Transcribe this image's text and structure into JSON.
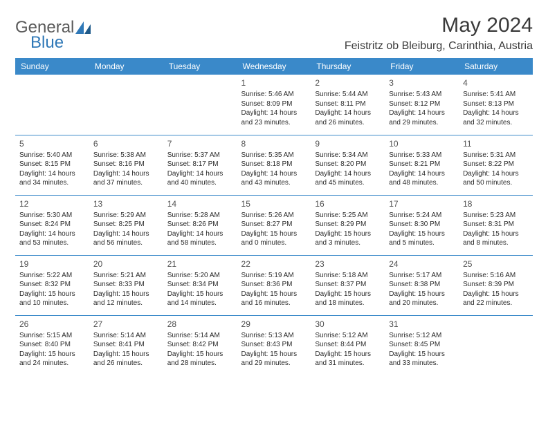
{
  "logo": {
    "word1": "General",
    "word2": "Blue"
  },
  "title": "May 2024",
  "location": "Feistritz ob Bleiburg, Carinthia, Austria",
  "header_bg": "#3a89c9",
  "divider_color": "#3a89c9",
  "dayHeaders": [
    "Sunday",
    "Monday",
    "Tuesday",
    "Wednesday",
    "Thursday",
    "Friday",
    "Saturday"
  ],
  "weeks": [
    [
      null,
      null,
      null,
      {
        "n": "1",
        "sr": "5:46 AM",
        "ss": "8:09 PM",
        "dl": "14 hours and 23 minutes."
      },
      {
        "n": "2",
        "sr": "5:44 AM",
        "ss": "8:11 PM",
        "dl": "14 hours and 26 minutes."
      },
      {
        "n": "3",
        "sr": "5:43 AM",
        "ss": "8:12 PM",
        "dl": "14 hours and 29 minutes."
      },
      {
        "n": "4",
        "sr": "5:41 AM",
        "ss": "8:13 PM",
        "dl": "14 hours and 32 minutes."
      }
    ],
    [
      {
        "n": "5",
        "sr": "5:40 AM",
        "ss": "8:15 PM",
        "dl": "14 hours and 34 minutes."
      },
      {
        "n": "6",
        "sr": "5:38 AM",
        "ss": "8:16 PM",
        "dl": "14 hours and 37 minutes."
      },
      {
        "n": "7",
        "sr": "5:37 AM",
        "ss": "8:17 PM",
        "dl": "14 hours and 40 minutes."
      },
      {
        "n": "8",
        "sr": "5:35 AM",
        "ss": "8:18 PM",
        "dl": "14 hours and 43 minutes."
      },
      {
        "n": "9",
        "sr": "5:34 AM",
        "ss": "8:20 PM",
        "dl": "14 hours and 45 minutes."
      },
      {
        "n": "10",
        "sr": "5:33 AM",
        "ss": "8:21 PM",
        "dl": "14 hours and 48 minutes."
      },
      {
        "n": "11",
        "sr": "5:31 AM",
        "ss": "8:22 PM",
        "dl": "14 hours and 50 minutes."
      }
    ],
    [
      {
        "n": "12",
        "sr": "5:30 AM",
        "ss": "8:24 PM",
        "dl": "14 hours and 53 minutes."
      },
      {
        "n": "13",
        "sr": "5:29 AM",
        "ss": "8:25 PM",
        "dl": "14 hours and 56 minutes."
      },
      {
        "n": "14",
        "sr": "5:28 AM",
        "ss": "8:26 PM",
        "dl": "14 hours and 58 minutes."
      },
      {
        "n": "15",
        "sr": "5:26 AM",
        "ss": "8:27 PM",
        "dl": "15 hours and 0 minutes."
      },
      {
        "n": "16",
        "sr": "5:25 AM",
        "ss": "8:29 PM",
        "dl": "15 hours and 3 minutes."
      },
      {
        "n": "17",
        "sr": "5:24 AM",
        "ss": "8:30 PM",
        "dl": "15 hours and 5 minutes."
      },
      {
        "n": "18",
        "sr": "5:23 AM",
        "ss": "8:31 PM",
        "dl": "15 hours and 8 minutes."
      }
    ],
    [
      {
        "n": "19",
        "sr": "5:22 AM",
        "ss": "8:32 PM",
        "dl": "15 hours and 10 minutes."
      },
      {
        "n": "20",
        "sr": "5:21 AM",
        "ss": "8:33 PM",
        "dl": "15 hours and 12 minutes."
      },
      {
        "n": "21",
        "sr": "5:20 AM",
        "ss": "8:34 PM",
        "dl": "15 hours and 14 minutes."
      },
      {
        "n": "22",
        "sr": "5:19 AM",
        "ss": "8:36 PM",
        "dl": "15 hours and 16 minutes."
      },
      {
        "n": "23",
        "sr": "5:18 AM",
        "ss": "8:37 PM",
        "dl": "15 hours and 18 minutes."
      },
      {
        "n": "24",
        "sr": "5:17 AM",
        "ss": "8:38 PM",
        "dl": "15 hours and 20 minutes."
      },
      {
        "n": "25",
        "sr": "5:16 AM",
        "ss": "8:39 PM",
        "dl": "15 hours and 22 minutes."
      }
    ],
    [
      {
        "n": "26",
        "sr": "5:15 AM",
        "ss": "8:40 PM",
        "dl": "15 hours and 24 minutes."
      },
      {
        "n": "27",
        "sr": "5:14 AM",
        "ss": "8:41 PM",
        "dl": "15 hours and 26 minutes."
      },
      {
        "n": "28",
        "sr": "5:14 AM",
        "ss": "8:42 PM",
        "dl": "15 hours and 28 minutes."
      },
      {
        "n": "29",
        "sr": "5:13 AM",
        "ss": "8:43 PM",
        "dl": "15 hours and 29 minutes."
      },
      {
        "n": "30",
        "sr": "5:12 AM",
        "ss": "8:44 PM",
        "dl": "15 hours and 31 minutes."
      },
      {
        "n": "31",
        "sr": "5:12 AM",
        "ss": "8:45 PM",
        "dl": "15 hours and 33 minutes."
      },
      null
    ]
  ],
  "labels": {
    "sunrise": "Sunrise:",
    "sunset": "Sunset:",
    "daylight": "Daylight:"
  }
}
